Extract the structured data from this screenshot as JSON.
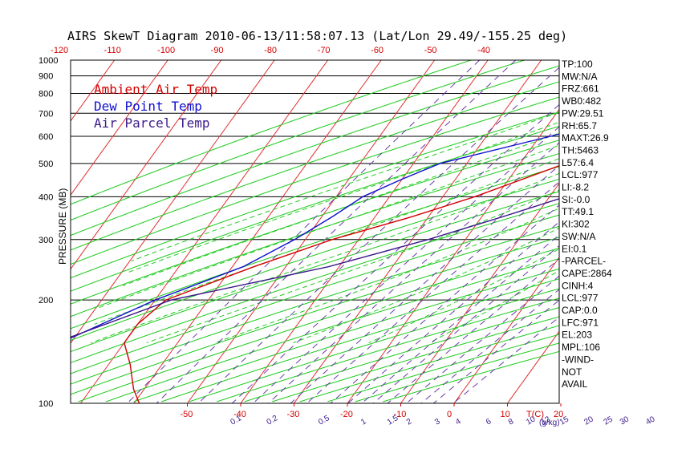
{
  "chart_data": {
    "type": "skewt",
    "title": "AIRS SkewT Diagram 2010-06-13/11:58:07.13 (Lat/Lon 29.49/-155.25 deg)",
    "ylabel": "PRESSURE (MB)",
    "xlabel": "T(C)",
    "mixing_label": "(g/kg)",
    "pressure_ticks": [
      100,
      200,
      300,
      400,
      500,
      600,
      700,
      800,
      900,
      1000
    ],
    "temp_ticks_bottom": [
      -50,
      -40,
      -30,
      -20,
      -10,
      0,
      10,
      20
    ],
    "temp_ticks_top": [
      -120,
      -110,
      -100,
      -90,
      -80,
      -70,
      -60,
      -50,
      -40
    ],
    "mixing_ratio_ticks": [
      0.1,
      0.2,
      0.5,
      1,
      1.5,
      2,
      3,
      4,
      6,
      8,
      10,
      12,
      15,
      20,
      25,
      30,
      40
    ],
    "legend": [
      {
        "label": "Ambient Air Temp",
        "color": "#d40000"
      },
      {
        "label": "Dew Point Temp",
        "color": "#1010d0"
      },
      {
        "label": "Air Parcel Temp",
        "color": "#3a1a8a"
      }
    ],
    "series": [
      {
        "name": "Ambient Air Temp",
        "color": "#d40000",
        "points": [
          [
            1000,
            26
          ],
          [
            950,
            21.5
          ],
          [
            900,
            18
          ],
          [
            850,
            15
          ],
          [
            800,
            11.5
          ],
          [
            700,
            4
          ],
          [
            600,
            -3.5
          ],
          [
            500,
            -11.5
          ],
          [
            400,
            -24
          ],
          [
            350,
            -33
          ],
          [
            300,
            -45
          ],
          [
            250,
            -56
          ],
          [
            200,
            -68
          ],
          [
            170,
            -70
          ],
          [
            150,
            -70
          ],
          [
            130,
            -66
          ],
          [
            110,
            -62
          ],
          [
            100,
            -59
          ]
        ]
      },
      {
        "name": "Dew Point Temp",
        "color": "#1010d0",
        "points": [
          [
            1000,
            22
          ],
          [
            950,
            17
          ],
          [
            900,
            12
          ],
          [
            850,
            8
          ],
          [
            800,
            4
          ],
          [
            700,
            -5
          ],
          [
            600,
            -18
          ],
          [
            500,
            -35
          ],
          [
            450,
            -40
          ],
          [
            400,
            -45
          ],
          [
            350,
            -48
          ],
          [
            300,
            -52
          ],
          [
            250,
            -58
          ],
          [
            200,
            -70
          ],
          [
            150,
            -82
          ],
          [
            130,
            -86
          ],
          [
            100,
            -89
          ]
        ]
      },
      {
        "name": "Air Parcel Temp",
        "color": "#3a1a8a",
        "points": [
          [
            1000,
            25
          ],
          [
            950,
            23
          ],
          [
            900,
            22
          ],
          [
            850,
            20.5
          ],
          [
            800,
            19.5
          ],
          [
            700,
            16
          ],
          [
            600,
            12
          ],
          [
            500,
            5
          ],
          [
            400,
            -7
          ],
          [
            350,
            -16
          ],
          [
            300,
            -27
          ],
          [
            250,
            -42
          ],
          [
            200,
            -67
          ],
          [
            150,
            -83
          ],
          [
            120,
            -92
          ],
          [
            100,
            -100
          ]
        ]
      }
    ],
    "indices": [
      "TP:100",
      "MW:N/A",
      "FRZ:661",
      "WB0:482",
      "PW:29.51",
      "RH:65.7",
      "MAXT:26.9",
      "TH:5463",
      "L57:6.4",
      "LCL:977",
      "LI:-8.2",
      "SI:-0.0",
      "TT:49.1",
      "KI:302",
      "SW:N/A",
      "EI:0.1",
      "-PARCEL-",
      "CAPE:2864",
      "CINH:4",
      "LCL:977",
      "CAP:0.0",
      "LFC:971",
      "EL:203",
      "MPL:106",
      "-WIND-",
      "NOT",
      "AVAIL"
    ]
  }
}
